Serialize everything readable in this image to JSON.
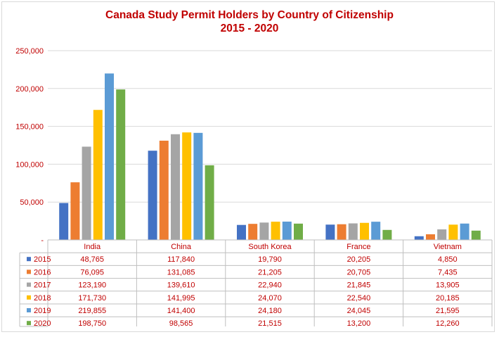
{
  "chart_data": {
    "type": "bar",
    "title": "Canada Study Permit Holders by Country of Citizenship",
    "subtitle": "2015 - 2020",
    "xlabel": "",
    "ylabel": "",
    "ylim": [
      0,
      250000
    ],
    "yticks": [
      0,
      50000,
      100000,
      150000,
      200000,
      250000
    ],
    "ytick_labels": [
      "-",
      "50,000",
      "100,000",
      "150,000",
      "200,000",
      "250,000"
    ],
    "grid": true,
    "legend": "data-table",
    "categories": [
      "India",
      "China",
      "South Korea",
      "France",
      "Vietnam"
    ],
    "series": [
      {
        "name": "2015",
        "color": "#4472c4",
        "values": [
          48765,
          117840,
          19790,
          20205,
          4850
        ],
        "labels": [
          "48,765",
          "117,840",
          "19,790",
          "20,205",
          "4,850"
        ]
      },
      {
        "name": "2016",
        "color": "#ed7d31",
        "values": [
          76095,
          131085,
          21205,
          20705,
          7435
        ],
        "labels": [
          "76,095",
          "131,085",
          "21,205",
          "20,705",
          "7,435"
        ]
      },
      {
        "name": "2017",
        "color": "#a5a5a5",
        "values": [
          123190,
          139610,
          22940,
          21845,
          13905
        ],
        "labels": [
          "123,190",
          "139,610",
          "22,940",
          "21,845",
          "13,905"
        ]
      },
      {
        "name": "2018",
        "color": "#ffc000",
        "values": [
          171730,
          141995,
          24070,
          22540,
          20185
        ],
        "labels": [
          "171,730",
          "141,995",
          "24,070",
          "22,540",
          "20,185"
        ]
      },
      {
        "name": "2019",
        "color": "#5b9bd5",
        "values": [
          219855,
          141400,
          24180,
          24045,
          21595
        ],
        "labels": [
          "219,855",
          "141,400",
          "24,180",
          "24,045",
          "21,595"
        ]
      },
      {
        "name": "2020",
        "color": "#70ad47",
        "values": [
          198750,
          98565,
          21515,
          13200,
          12260
        ],
        "labels": [
          "198,750",
          "98,565",
          "21,515",
          "13,200",
          "12,260"
        ]
      }
    ]
  },
  "colors": {
    "title": "#c00000",
    "axis_text": "#c00000",
    "gridline": "#d9d9d9",
    "table_border": "#bfbfbf"
  }
}
